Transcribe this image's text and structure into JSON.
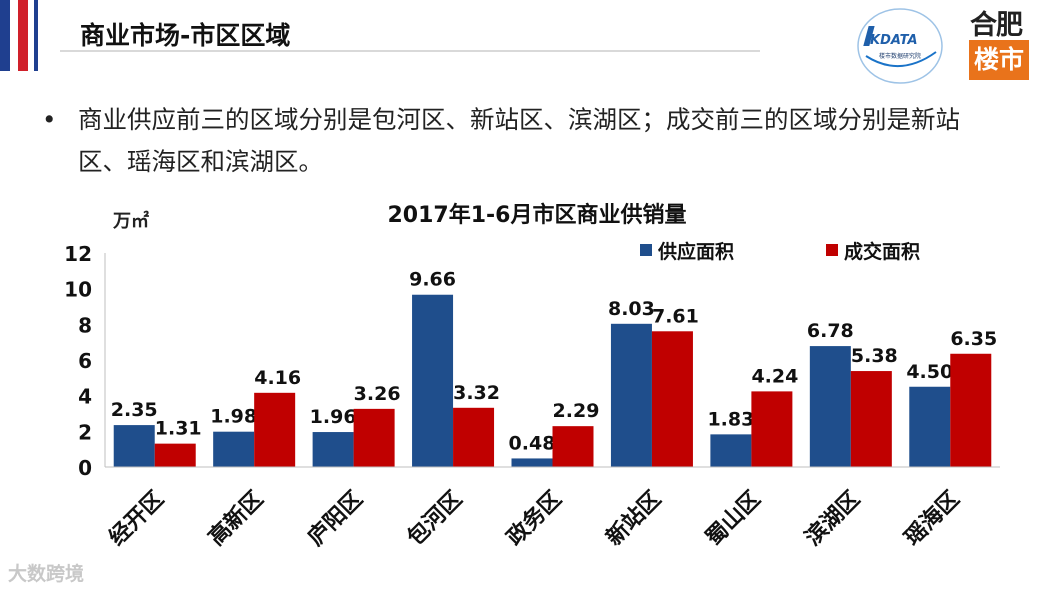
{
  "header": {
    "title": "商业市场-市区区域"
  },
  "logos": {
    "kdata_text": "KDATA",
    "kdata_sub": "楼市数据研究院",
    "hefei_top": "合肥",
    "hefei_bottom": "楼市"
  },
  "bullet": {
    "text": "商业供应前三的区域分别是包河区、新站区、滨湖区；成交前三的区域分别是新站区、瑶海区和滨湖区。"
  },
  "watermark": "大数跨境",
  "chart_data": {
    "type": "bar",
    "title": "2017年1-6月市区商业供销量",
    "ylabel": "万㎡",
    "ylim": [
      0,
      12
    ],
    "yticks": [
      0,
      2,
      4,
      6,
      8,
      10,
      12
    ],
    "grid": false,
    "legend_position": "top-right",
    "categories": [
      "经开区",
      "高新区",
      "庐阳区",
      "包河区",
      "政务区",
      "新站区",
      "蜀山区",
      "滨湖区",
      "瑶海区"
    ],
    "series": [
      {
        "name": "供应面积",
        "color": "#1f4e8c",
        "values": [
          2.35,
          1.98,
          1.96,
          9.66,
          0.48,
          8.03,
          1.83,
          6.78,
          4.5
        ],
        "labels": [
          "2.35",
          "1.98",
          "1.96",
          "9.66",
          "0.48",
          "8.03",
          "1.83",
          "6.78",
          "4.50"
        ]
      },
      {
        "name": "成交面积",
        "color": "#c00000",
        "values": [
          1.31,
          4.16,
          3.26,
          3.32,
          2.29,
          7.61,
          4.24,
          5.38,
          6.35
        ],
        "labels": [
          "1.31",
          "4.16",
          "3.26",
          "3.32",
          "2.29",
          "7.61",
          "4.24",
          "5.38",
          "6.35"
        ]
      }
    ]
  },
  "colors": {
    "stripe_blue": "#1f3f8f",
    "stripe_red": "#d0202a",
    "accent_orange": "#e9731b"
  }
}
